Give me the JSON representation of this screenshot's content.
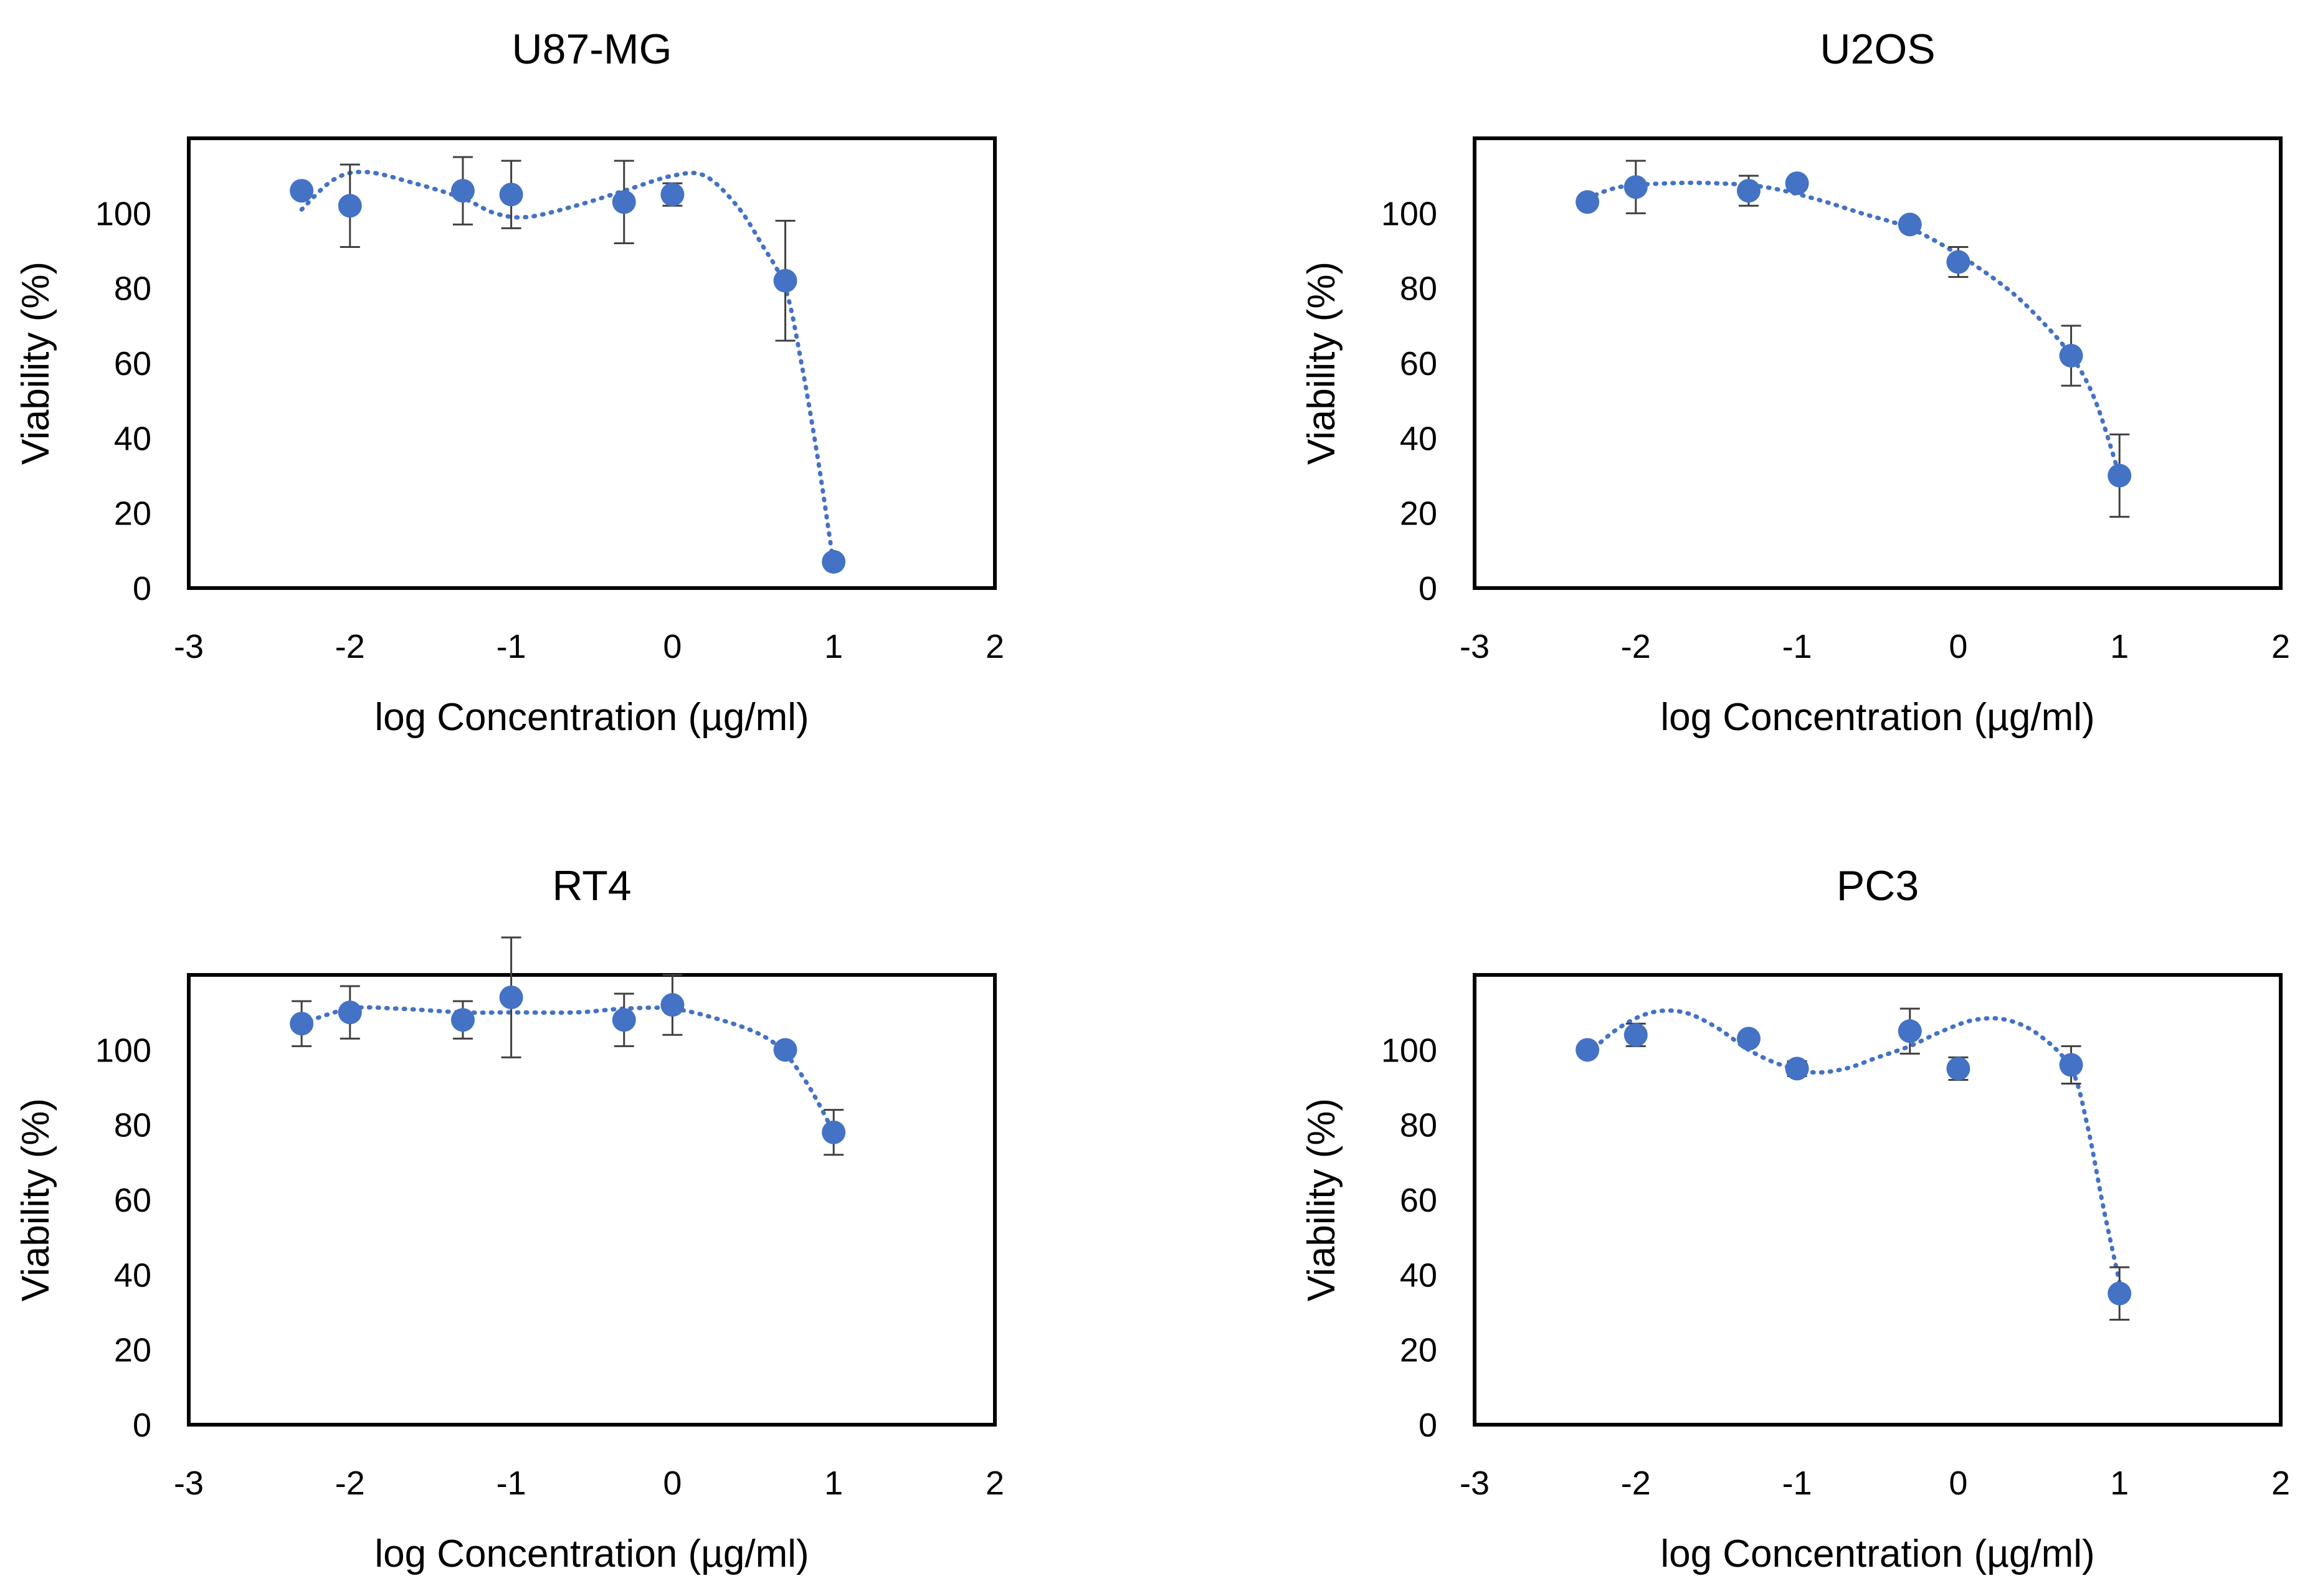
{
  "figure": {
    "colors": {
      "marker": "#4472C4",
      "trend": "#4472C4",
      "errorbar": "#404040",
      "frame": "#000000"
    }
  },
  "chart_data": [
    {
      "type": "scatter",
      "title": "U87-MG",
      "xlabel": "log Concentration (µg/ml)",
      "ylabel": "Viability (%)",
      "xlim": [
        -3,
        2
      ],
      "ylim": [
        0,
        120
      ],
      "xticks": [
        "-3",
        "-2",
        "-1",
        "0",
        "1",
        "2"
      ],
      "yticks": [
        "0",
        "20",
        "40",
        "60",
        "80",
        "100"
      ],
      "points": [
        {
          "x": -2.3,
          "y": 106,
          "err": 0
        },
        {
          "x": -2.0,
          "y": 102,
          "err": 11
        },
        {
          "x": -1.3,
          "y": 106,
          "err": 9
        },
        {
          "x": -1.0,
          "y": 105,
          "err": 9
        },
        {
          "x": -0.3,
          "y": 103,
          "err": 11
        },
        {
          "x": 0.0,
          "y": 105,
          "err": 3
        },
        {
          "x": 0.7,
          "y": 82,
          "err": 16
        },
        {
          "x": 1.0,
          "y": 7,
          "err": 0
        }
      ],
      "trendline": {
        "style": "dotted",
        "points": [
          [
            -2.3,
            101
          ],
          [
            -2.1,
            109
          ],
          [
            -1.9,
            111
          ],
          [
            -1.6,
            108
          ],
          [
            -1.3,
            104
          ],
          [
            -1.1,
            100
          ],
          [
            -0.9,
            99
          ],
          [
            -0.6,
            102
          ],
          [
            -0.3,
            106
          ],
          [
            0.0,
            110
          ],
          [
            0.2,
            110
          ],
          [
            0.4,
            102
          ],
          [
            0.55,
            92
          ],
          [
            0.7,
            80
          ],
          [
            0.8,
            60
          ],
          [
            0.9,
            35
          ],
          [
            0.97,
            15
          ],
          [
            1.0,
            6
          ]
        ]
      }
    },
    {
      "type": "scatter",
      "title": "U2OS",
      "xlabel": "log Concentration (µg/ml)",
      "ylabel": "Viability (%)",
      "xlim": [
        -3,
        2
      ],
      "ylim": [
        0,
        120
      ],
      "xticks": [
        "-3",
        "-2",
        "-1",
        "0",
        "1",
        "2"
      ],
      "yticks": [
        "0",
        "20",
        "40",
        "60",
        "80",
        "100"
      ],
      "points": [
        {
          "x": -2.3,
          "y": 103,
          "err": 0
        },
        {
          "x": -2.0,
          "y": 107,
          "err": 7
        },
        {
          "x": -1.3,
          "y": 106,
          "err": 4
        },
        {
          "x": -1.0,
          "y": 108,
          "err": 0
        },
        {
          "x": -0.3,
          "y": 97,
          "err": 0
        },
        {
          "x": 0.0,
          "y": 87,
          "err": 4
        },
        {
          "x": 0.7,
          "y": 62,
          "err": 8
        },
        {
          "x": 1.0,
          "y": 30,
          "err": 11
        }
      ],
      "trendline": {
        "style": "dotted",
        "points": [
          [
            -2.3,
            104
          ],
          [
            -2.1,
            107
          ],
          [
            -1.8,
            108
          ],
          [
            -1.5,
            108
          ],
          [
            -1.2,
            107
          ],
          [
            -0.9,
            104
          ],
          [
            -0.6,
            100
          ],
          [
            -0.3,
            96
          ],
          [
            0.0,
            89
          ],
          [
            0.3,
            80
          ],
          [
            0.5,
            72
          ],
          [
            0.7,
            62
          ],
          [
            0.85,
            50
          ],
          [
            1.0,
            30
          ]
        ]
      }
    },
    {
      "type": "scatter",
      "title": "RT4",
      "xlabel": "log Concentration (µg/ml)",
      "ylabel": "Viability (%)",
      "xlim": [
        -3,
        2
      ],
      "ylim": [
        0,
        120
      ],
      "xticks": [
        "-3",
        "-2",
        "-1",
        "0",
        "1",
        "2"
      ],
      "yticks": [
        "0",
        "20",
        "40",
        "60",
        "80",
        "100"
      ],
      "points": [
        {
          "x": -2.3,
          "y": 107,
          "err": 6
        },
        {
          "x": -2.0,
          "y": 110,
          "err": 7
        },
        {
          "x": -1.3,
          "y": 108,
          "err": 5
        },
        {
          "x": -1.0,
          "y": 114,
          "err": 16
        },
        {
          "x": -0.3,
          "y": 108,
          "err": 7
        },
        {
          "x": 0.0,
          "y": 112,
          "err": 8
        },
        {
          "x": 0.7,
          "y": 100,
          "err": 0
        },
        {
          "x": 1.0,
          "y": 78,
          "err": 6
        }
      ],
      "trendline": {
        "style": "dotted",
        "points": [
          [
            -2.3,
            107
          ],
          [
            -2.0,
            111
          ],
          [
            -1.7,
            111
          ],
          [
            -1.3,
            110
          ],
          [
            -1.0,
            110
          ],
          [
            -0.6,
            110
          ],
          [
            -0.3,
            111
          ],
          [
            0.0,
            111
          ],
          [
            0.3,
            108
          ],
          [
            0.55,
            104
          ],
          [
            0.7,
            99
          ],
          [
            0.85,
            90
          ],
          [
            1.0,
            78
          ]
        ]
      }
    },
    {
      "type": "scatter",
      "title": "PC3",
      "xlabel": "log Concentration (µg/ml)",
      "ylabel": "Viability (%)",
      "xlim": [
        -3,
        2
      ],
      "ylim": [
        0,
        120
      ],
      "xticks": [
        "-3",
        "-2",
        "-1",
        "0",
        "1",
        "2"
      ],
      "yticks": [
        "0",
        "20",
        "40",
        "60",
        "80",
        "100"
      ],
      "points": [
        {
          "x": -2.3,
          "y": 100,
          "err": 0
        },
        {
          "x": -2.0,
          "y": 104,
          "err": 3
        },
        {
          "x": -1.3,
          "y": 103,
          "err": 0
        },
        {
          "x": -1.0,
          "y": 95,
          "err": 2
        },
        {
          "x": -0.3,
          "y": 105,
          "err": 6
        },
        {
          "x": 0.0,
          "y": 95,
          "err": 3
        },
        {
          "x": 0.7,
          "y": 96,
          "err": 5
        },
        {
          "x": 1.0,
          "y": 35,
          "err": 7
        }
      ],
      "trendline": {
        "style": "dotted",
        "points": [
          [
            -2.3,
            99
          ],
          [
            -2.1,
            106
          ],
          [
            -1.9,
            110
          ],
          [
            -1.7,
            110
          ],
          [
            -1.5,
            106
          ],
          [
            -1.3,
            100
          ],
          [
            -1.1,
            96
          ],
          [
            -0.9,
            94
          ],
          [
            -0.7,
            95
          ],
          [
            -0.5,
            98
          ],
          [
            -0.3,
            101
          ],
          [
            -0.1,
            105
          ],
          [
            0.1,
            108
          ],
          [
            0.3,
            108
          ],
          [
            0.5,
            104
          ],
          [
            0.7,
            95
          ],
          [
            0.8,
            80
          ],
          [
            0.9,
            58
          ],
          [
            1.0,
            38
          ]
        ]
      }
    }
  ]
}
